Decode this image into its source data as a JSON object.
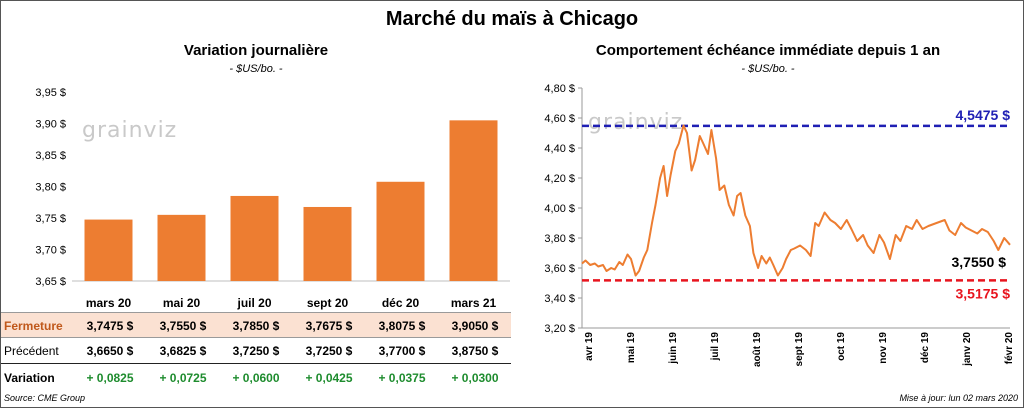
{
  "title": "Marché du maïs à Chicago",
  "source": "Source: CME Group",
  "updated": "Mise à jour: lun 02 mars 2020",
  "watermark": "grainviz",
  "colors": {
    "bar": "#ed7d31",
    "line": "#ed7d31",
    "high": "#1f1fb4",
    "low": "#e8141e",
    "variation": "#1e8c2e"
  },
  "left": {
    "subtitle": "Variation  journalière",
    "unit": "- $US/bo. -",
    "table": {
      "close_label": "Fermeture",
      "prev_label": "Précédent",
      "var_label": "Variation",
      "close": [
        "3,7475  $",
        "3,7550  $",
        "3,7850  $",
        "3,7675  $",
        "3,8075  $",
        "3,9050  $"
      ],
      "prev": [
        "3,6650  $",
        "3,6825  $",
        "3,7250  $",
        "3,7250  $",
        "3,7700  $",
        "3,8750  $"
      ],
      "variation": [
        "+ 0,0825",
        "+ 0,0725",
        "+ 0,0600",
        "+ 0,0425",
        "+ 0,0375",
        "+ 0,0300"
      ]
    }
  },
  "right": {
    "subtitle": "Comportement  échéance immédiate  depuis 1 an",
    "unit": "- $US/bo. -"
  },
  "chart_data": [
    {
      "type": "bar",
      "title": "Variation  journalière",
      "categories": [
        "mars 20",
        "mai 20",
        "juil 20",
        "sept 20",
        "déc 20",
        "mars 21"
      ],
      "values": [
        3.7475,
        3.755,
        3.785,
        3.7675,
        3.8075,
        3.905
      ],
      "ylim": [
        3.65,
        3.95
      ],
      "yticks": [
        3.65,
        3.7,
        3.75,
        3.8,
        3.85,
        3.9,
        3.95
      ],
      "ytick_labels": [
        "3,65 $",
        "3,70 $",
        "3,75 $",
        "3,80 $",
        "3,85 $",
        "3,90 $",
        "3,95 $"
      ],
      "grid": false
    },
    {
      "type": "line",
      "title": "Comportement  échéance immédiate  depuis 1 an",
      "x_labels": [
        "avr 19",
        "mai 19",
        "juin 19",
        "juil 19",
        "août 19",
        "sept 19",
        "oct 19",
        "nov 19",
        "déc 19",
        "janv 20",
        "févr 20"
      ],
      "ylim": [
        3.2,
        4.8
      ],
      "yticks": [
        3.2,
        3.4,
        3.6,
        3.8,
        4.0,
        4.2,
        4.4,
        4.6,
        4.8
      ],
      "ytick_labels": [
        "3,20 $",
        "3,40 $",
        "3,60 $",
        "3,80 $",
        "4,00 $",
        "4,20 $",
        "4,40 $",
        "4,60 $",
        "4,80 $"
      ],
      "x": [
        "2019-03-01",
        "2019-03-04",
        "2019-03-08",
        "2019-03-12",
        "2019-03-15",
        "2019-03-19",
        "2019-03-22",
        "2019-03-26",
        "2019-03-29",
        "2019-04-02",
        "2019-04-05",
        "2019-04-09",
        "2019-04-12",
        "2019-04-16",
        "2019-04-19",
        "2019-04-23",
        "2019-04-26",
        "2019-04-30",
        "2019-05-03",
        "2019-05-07",
        "2019-05-10",
        "2019-05-13",
        "2019-05-16",
        "2019-05-20",
        "2019-05-23",
        "2019-05-27",
        "2019-05-30",
        "2019-06-03",
        "2019-06-06",
        "2019-06-10",
        "2019-06-13",
        "2019-06-17",
        "2019-06-20",
        "2019-06-24",
        "2019-06-27",
        "2019-07-01",
        "2019-07-05",
        "2019-07-09",
        "2019-07-12",
        "2019-07-15",
        "2019-07-19",
        "2019-07-23",
        "2019-07-26",
        "2019-07-30",
        "2019-08-02",
        "2019-08-06",
        "2019-08-09",
        "2019-08-12",
        "2019-08-16",
        "2019-08-20",
        "2019-08-23",
        "2019-08-27",
        "2019-08-30",
        "2019-09-04",
        "2019-09-09",
        "2019-09-13",
        "2019-09-17",
        "2019-09-20",
        "2019-09-25",
        "2019-09-30",
        "2019-10-04",
        "2019-10-09",
        "2019-10-14",
        "2019-10-18",
        "2019-10-23",
        "2019-10-28",
        "2019-11-01",
        "2019-11-06",
        "2019-11-11",
        "2019-11-15",
        "2019-11-20",
        "2019-11-25",
        "2019-11-29",
        "2019-12-04",
        "2019-12-09",
        "2019-12-13",
        "2019-12-18",
        "2019-12-23",
        "2019-12-30",
        "2020-01-06",
        "2020-01-10",
        "2020-01-15",
        "2020-01-20",
        "2020-01-24",
        "2020-01-29",
        "2020-02-03",
        "2020-02-07",
        "2020-02-12",
        "2020-02-17",
        "2020-02-21",
        "2020-02-26",
        "2020-03-02"
      ],
      "values": [
        3.63,
        3.65,
        3.62,
        3.63,
        3.61,
        3.62,
        3.58,
        3.6,
        3.59,
        3.64,
        3.62,
        3.69,
        3.66,
        3.55,
        3.58,
        3.67,
        3.72,
        3.9,
        4.02,
        4.2,
        4.28,
        4.08,
        4.22,
        4.38,
        4.43,
        4.55,
        4.5,
        4.25,
        4.32,
        4.48,
        4.43,
        4.36,
        4.52,
        4.33,
        4.12,
        4.15,
        4.02,
        3.95,
        4.08,
        4.1,
        3.95,
        3.88,
        3.7,
        3.6,
        3.68,
        3.63,
        3.67,
        3.62,
        3.55,
        3.6,
        3.66,
        3.72,
        3.73,
        3.75,
        3.72,
        3.68,
        3.9,
        3.88,
        3.97,
        3.92,
        3.9,
        3.86,
        3.92,
        3.86,
        3.78,
        3.82,
        3.75,
        3.7,
        3.82,
        3.77,
        3.66,
        3.82,
        3.78,
        3.88,
        3.86,
        3.92,
        3.86,
        3.88,
        3.9,
        3.92,
        3.85,
        3.82,
        3.9,
        3.87,
        3.85,
        3.83,
        3.86,
        3.84,
        3.78,
        3.72,
        3.8,
        3.755
      ],
      "reference_lines": [
        {
          "label": "4,5475 $",
          "value": 4.5475,
          "color": "#1f1fb4",
          "style": "dashed"
        },
        {
          "label": "3,5175 $",
          "value": 3.5175,
          "color": "#e8141e",
          "style": "dashed"
        }
      ],
      "last_value_label": "3,7550 $",
      "grid": false
    }
  ]
}
